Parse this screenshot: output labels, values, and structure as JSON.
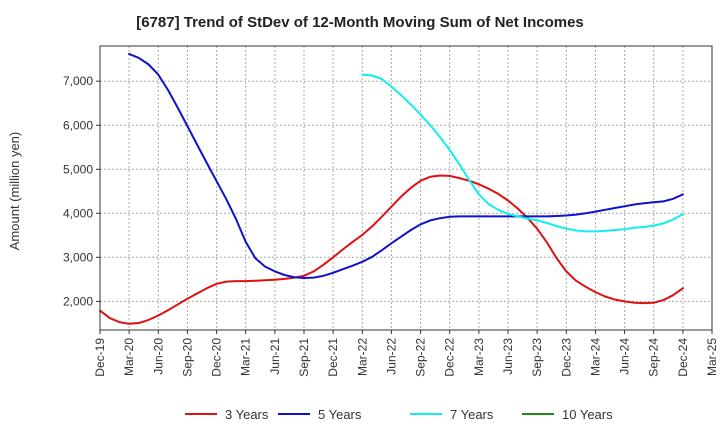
{
  "chart_data": {
    "type": "line",
    "title": "[6787]  Trend of StDev of 12-Month Moving Sum of Net Incomes",
    "xlabel": "",
    "ylabel": "Amount (million yen)",
    "x_ticks": [
      "Dec-19",
      "Mar-20",
      "Jun-20",
      "Sep-20",
      "Dec-20",
      "Mar-21",
      "Jun-21",
      "Sep-21",
      "Dec-21",
      "Mar-22",
      "Jun-22",
      "Sep-22",
      "Dec-22",
      "Mar-23",
      "Jun-23",
      "Sep-23",
      "Dec-23",
      "Mar-24",
      "Jun-24",
      "Sep-24",
      "Dec-24",
      "Mar-25"
    ],
    "y_ticks": [
      2000,
      3000,
      4000,
      5000,
      6000,
      7000
    ],
    "y_tick_labels": [
      "2,000",
      "3,000",
      "4,000",
      "5,000",
      "6,000",
      "7,000"
    ],
    "ylim": [
      1350,
      7800
    ],
    "grid": true,
    "legend_position": "bottom",
    "series": [
      {
        "name": "3 Years",
        "color": "#dd1111",
        "x": [
          "Dec-19",
          "Jan-20",
          "Feb-20",
          "Mar-20",
          "Apr-20",
          "May-20",
          "Jun-20",
          "Jul-20",
          "Aug-20",
          "Sep-20",
          "Oct-20",
          "Nov-20",
          "Dec-20",
          "Jan-21",
          "Feb-21",
          "Mar-21",
          "Apr-21",
          "May-21",
          "Jun-21",
          "Jul-21",
          "Aug-21",
          "Sep-21",
          "Oct-21",
          "Nov-21",
          "Dec-21",
          "Jan-22",
          "Feb-22",
          "Mar-22",
          "Apr-22",
          "May-22",
          "Jun-22",
          "Jul-22",
          "Aug-22",
          "Sep-22",
          "Oct-22",
          "Nov-22",
          "Dec-22",
          "Jan-23",
          "Feb-23",
          "Mar-23",
          "Apr-23",
          "May-23",
          "Jun-23",
          "Jul-23",
          "Aug-23",
          "Sep-23",
          "Oct-23",
          "Nov-23",
          "Dec-23",
          "Jan-24",
          "Feb-24",
          "Mar-24",
          "Apr-24",
          "May-24",
          "Jun-24",
          "Jul-24",
          "Aug-24",
          "Sep-24",
          "Oct-24",
          "Nov-24",
          "Dec-24"
        ],
        "values": [
          1790,
          1620,
          1530,
          1490,
          1510,
          1580,
          1680,
          1800,
          1930,
          2060,
          2180,
          2300,
          2400,
          2450,
          2460,
          2460,
          2470,
          2480,
          2490,
          2510,
          2540,
          2580,
          2680,
          2830,
          3000,
          3180,
          3350,
          3510,
          3700,
          3920,
          4150,
          4380,
          4580,
          4740,
          4830,
          4860,
          4850,
          4800,
          4740,
          4660,
          4560,
          4440,
          4290,
          4110,
          3900,
          3650,
          3340,
          2980,
          2680,
          2470,
          2330,
          2210,
          2110,
          2040,
          2000,
          1970,
          1960,
          1970,
          2030,
          2140,
          2300
        ]
      },
      {
        "name": "5 Years",
        "color": "#1111cc",
        "x": [
          "Mar-20",
          "Apr-20",
          "May-20",
          "Jun-20",
          "Jul-20",
          "Aug-20",
          "Sep-20",
          "Oct-20",
          "Nov-20",
          "Dec-20",
          "Jan-21",
          "Feb-21",
          "Mar-21",
          "Apr-21",
          "May-21",
          "Jun-21",
          "Jul-21",
          "Aug-21",
          "Sep-21",
          "Oct-21",
          "Nov-21",
          "Dec-21",
          "Jan-22",
          "Feb-22",
          "Mar-22",
          "Apr-22",
          "May-22",
          "Jun-22",
          "Jul-22",
          "Aug-22",
          "Sep-22",
          "Oct-22",
          "Nov-22",
          "Dec-22",
          "Jan-23",
          "Feb-23",
          "Mar-23",
          "Apr-23",
          "May-23",
          "Jun-23",
          "Jul-23",
          "Aug-23",
          "Sep-23",
          "Oct-23",
          "Nov-23",
          "Dec-23",
          "Jan-24",
          "Feb-24",
          "Mar-24",
          "Apr-24",
          "May-24",
          "Jun-24",
          "Jul-24",
          "Aug-24",
          "Sep-24",
          "Oct-24",
          "Nov-24",
          "Dec-24"
        ],
        "values": [
          7620,
          7530,
          7380,
          7150,
          6800,
          6400,
          5980,
          5560,
          5140,
          4730,
          4320,
          3870,
          3350,
          2980,
          2790,
          2680,
          2600,
          2550,
          2530,
          2540,
          2580,
          2650,
          2730,
          2810,
          2900,
          3010,
          3160,
          3320,
          3470,
          3620,
          3750,
          3840,
          3890,
          3920,
          3930,
          3930,
          3930,
          3930,
          3930,
          3930,
          3930,
          3930,
          3930,
          3930,
          3940,
          3950,
          3970,
          4000,
          4040,
          4080,
          4120,
          4160,
          4200,
          4230,
          4250,
          4270,
          4330,
          4430
        ]
      },
      {
        "name": "7 Years",
        "color": "#11eeee",
        "x": [
          "Mar-22",
          "Apr-22",
          "May-22",
          "Jun-22",
          "Jul-22",
          "Aug-22",
          "Sep-22",
          "Oct-22",
          "Nov-22",
          "Dec-22",
          "Jan-23",
          "Feb-23",
          "Mar-23",
          "Apr-23",
          "May-23",
          "Jun-23",
          "Jul-23",
          "Aug-23",
          "Sep-23",
          "Oct-23",
          "Nov-23",
          "Dec-23",
          "Jan-24",
          "Feb-24",
          "Mar-24",
          "Apr-24",
          "May-24",
          "Jun-24",
          "Jul-24",
          "Aug-24",
          "Sep-24",
          "Oct-24",
          "Nov-24",
          "Dec-24"
        ],
        "values": [
          7150,
          7130,
          7050,
          6880,
          6680,
          6470,
          6240,
          6000,
          5730,
          5440,
          5110,
          4760,
          4430,
          4210,
          4080,
          3990,
          3930,
          3880,
          3840,
          3780,
          3710,
          3650,
          3610,
          3590,
          3590,
          3600,
          3620,
          3640,
          3670,
          3690,
          3720,
          3770,
          3860,
          3980
        ]
      },
      {
        "name": "10 Years",
        "color": "#228822",
        "x": [],
        "values": []
      }
    ]
  }
}
